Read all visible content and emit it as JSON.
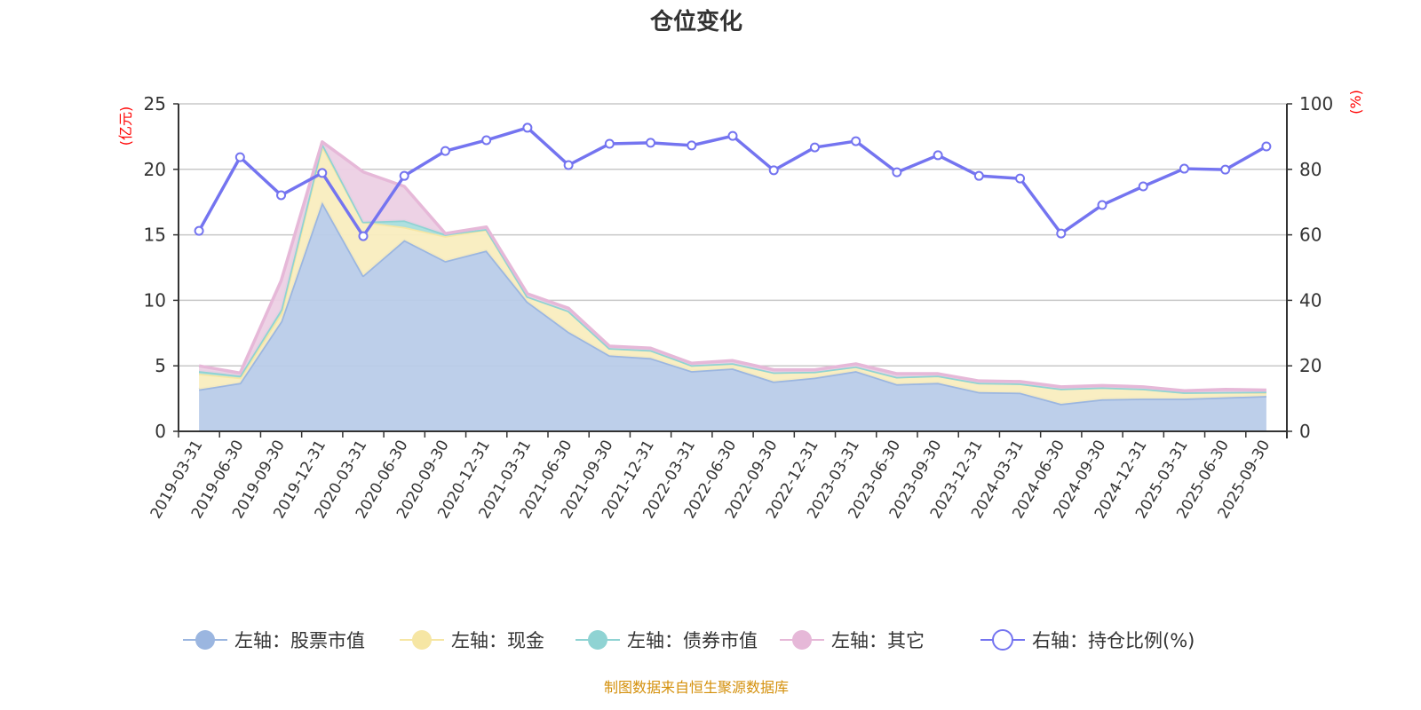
{
  "title": "仓位变化",
  "footer": "制图数据来自恒生聚源数据库",
  "chart_data": {
    "type": "area+line",
    "title": "仓位变化",
    "left_axis": {
      "label": "(亿元)",
      "range": [
        0,
        25
      ],
      "ticks": [
        "0",
        "5",
        "10",
        "15",
        "20",
        "25"
      ]
    },
    "right_axis": {
      "label": "(%)",
      "range": [
        0,
        100
      ],
      "ticks": [
        "0",
        "20",
        "40",
        "60",
        "80",
        "100"
      ]
    },
    "grid": true,
    "legend_position": "bottom",
    "categories": [
      "2019-03-31",
      "2019-06-30",
      "2019-09-30",
      "2019-12-31",
      "2020-03-31",
      "2020-06-30",
      "2020-09-30",
      "2020-12-31",
      "2021-03-31",
      "2021-06-30",
      "2021-09-30",
      "2021-12-31",
      "2022-03-31",
      "2022-06-30",
      "2022-09-30",
      "2022-12-31",
      "2023-03-31",
      "2023-06-30",
      "2023-09-30",
      "2023-12-31",
      "2024-03-31",
      "2024-06-30",
      "2024-09-30",
      "2024-12-31",
      "2025-03-31",
      "2025-06-30",
      "2025-09-30"
    ],
    "series": [
      {
        "name": "左轴：股票市值",
        "axis": "left",
        "stack": true,
        "color": "#9bb6e0",
        "fill": "#b9cce9",
        "values": [
          3.2,
          3.7,
          8.4,
          17.5,
          11.9,
          14.6,
          13.0,
          13.8,
          9.9,
          7.6,
          5.8,
          5.6,
          4.6,
          4.8,
          3.8,
          4.1,
          4.6,
          3.6,
          3.7,
          3.0,
          2.95,
          2.1,
          2.45,
          2.5,
          2.5,
          2.6,
          2.7
        ]
      },
      {
        "name": "左轴：现金",
        "axis": "left",
        "stack": true,
        "color": "#f6e6a4",
        "fill": "#f9edbf",
        "values": [
          1.2,
          0.4,
          0.6,
          4.3,
          4.1,
          1.0,
          1.9,
          1.6,
          0.4,
          1.6,
          0.55,
          0.6,
          0.45,
          0.4,
          0.7,
          0.45,
          0.35,
          0.55,
          0.55,
          0.7,
          0.7,
          1.15,
          0.9,
          0.75,
          0.47,
          0.4,
          0.27
        ]
      },
      {
        "name": "左轴：债券市值",
        "axis": "left",
        "stack": true,
        "color": "#8fd3d3",
        "fill": "#a9dede",
        "values": [
          0.2,
          0.15,
          0.3,
          0.2,
          null,
          0.5,
          0.15,
          0.05,
          0,
          0,
          0,
          0,
          0,
          0,
          0,
          0,
          0,
          0,
          0,
          0,
          0,
          0,
          0,
          0,
          0,
          0,
          0.05
        ]
      },
      {
        "name": "左轴：其它",
        "axis": "left",
        "stack": true,
        "color": "#e6b8d8",
        "fill": "#ecd0e4",
        "values": [
          0.4,
          0.2,
          2.2,
          0.1,
          3.8,
          2.6,
          0.05,
          0.15,
          0.2,
          0.2,
          0.15,
          0.15,
          0.15,
          0.2,
          0.2,
          0.15,
          0.2,
          0.25,
          0.15,
          0.15,
          0.15,
          0.15,
          0.15,
          0.15,
          0.13,
          0.2,
          0.13
        ]
      },
      {
        "name": "右轴：持仓比例(%)",
        "axis": "right",
        "stack": false,
        "color": "#7474f0",
        "values": [
          61.2,
          83.7,
          72.1,
          78.9,
          59.6,
          78.0,
          85.6,
          88.9,
          92.7,
          81.3,
          87.8,
          88.1,
          87.3,
          90.2,
          79.7,
          86.7,
          88.6,
          79.1,
          84.3,
          78.0,
          77.2,
          60.4,
          69.1,
          74.8,
          80.2,
          79.9,
          87.0
        ]
      }
    ]
  }
}
